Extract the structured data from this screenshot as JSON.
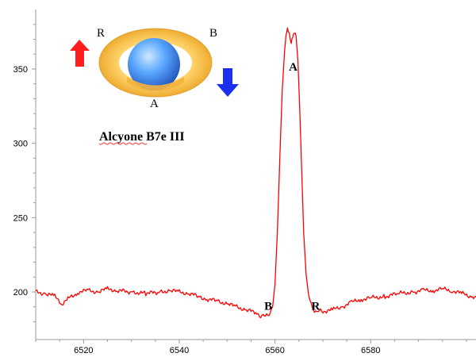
{
  "chart_data": {
    "type": "line",
    "title": "",
    "xlabel": "",
    "ylabel": "",
    "xlim": [
      6510,
      6602
    ],
    "ylim": [
      168,
      390
    ],
    "x_ticks": [
      6520,
      6540,
      6560,
      6580
    ],
    "y_ticks": [
      200,
      250,
      300,
      350
    ],
    "grid": false,
    "line_color": "#ff0000",
    "series": [
      {
        "x": [
          6510,
          6512,
          6514,
          6515.5,
          6517,
          6519,
          6521,
          6523,
          6525,
          6527,
          6530,
          6533,
          6536,
          6538,
          6540,
          6542,
          6544,
          6546,
          6548,
          6550,
          6552,
          6554,
          6556,
          6557,
          6558,
          6559,
          6559.5,
          6560,
          6560.5,
          6561,
          6561.5,
          6562,
          6562.3,
          6562.6,
          6563,
          6563.4,
          6563.7,
          6564,
          6564.4,
          6564.8,
          6565.2,
          6565.6,
          6566,
          6566.5,
          6567,
          6567.5,
          6568,
          6569,
          6570,
          6572,
          6574,
          6576,
          6578,
          6580,
          6583,
          6586,
          6589,
          6591,
          6593,
          6595,
          6597,
          6599,
          6601,
          6602
        ],
        "y": [
          200,
          199,
          197,
          192,
          196,
          200,
          201,
          200,
          202,
          201,
          200,
          199,
          200,
          201,
          200,
          199,
          197,
          195,
          194,
          192,
          190,
          188,
          186,
          184,
          184,
          186,
          190,
          205,
          240,
          290,
          335,
          362,
          372,
          377,
          374,
          368,
          372,
          374,
          372,
          355,
          320,
          280,
          240,
          212,
          198,
          192,
          188,
          187,
          187,
          188,
          190,
          193,
          195,
          196,
          197,
          199,
          200,
          201,
          201,
          202,
          201,
          199,
          197,
          197
        ]
      }
    ],
    "annotations": [
      {
        "text": "A",
        "x": 6563.8,
        "y": 349
      },
      {
        "text": "B",
        "x": 6558.6,
        "y": 188
      },
      {
        "text": "R",
        "x": 6568.5,
        "y": 188
      }
    ]
  },
  "inset": {
    "title": "Alcyone B7e III",
    "label_r": "R",
    "label_b": "B",
    "label_a": "A",
    "ring_color": "#f5b841",
    "star_color": "#3f7fe0",
    "arrow_up_color": "#ff1e1e",
    "arrow_down_color": "#1b2ff0"
  }
}
